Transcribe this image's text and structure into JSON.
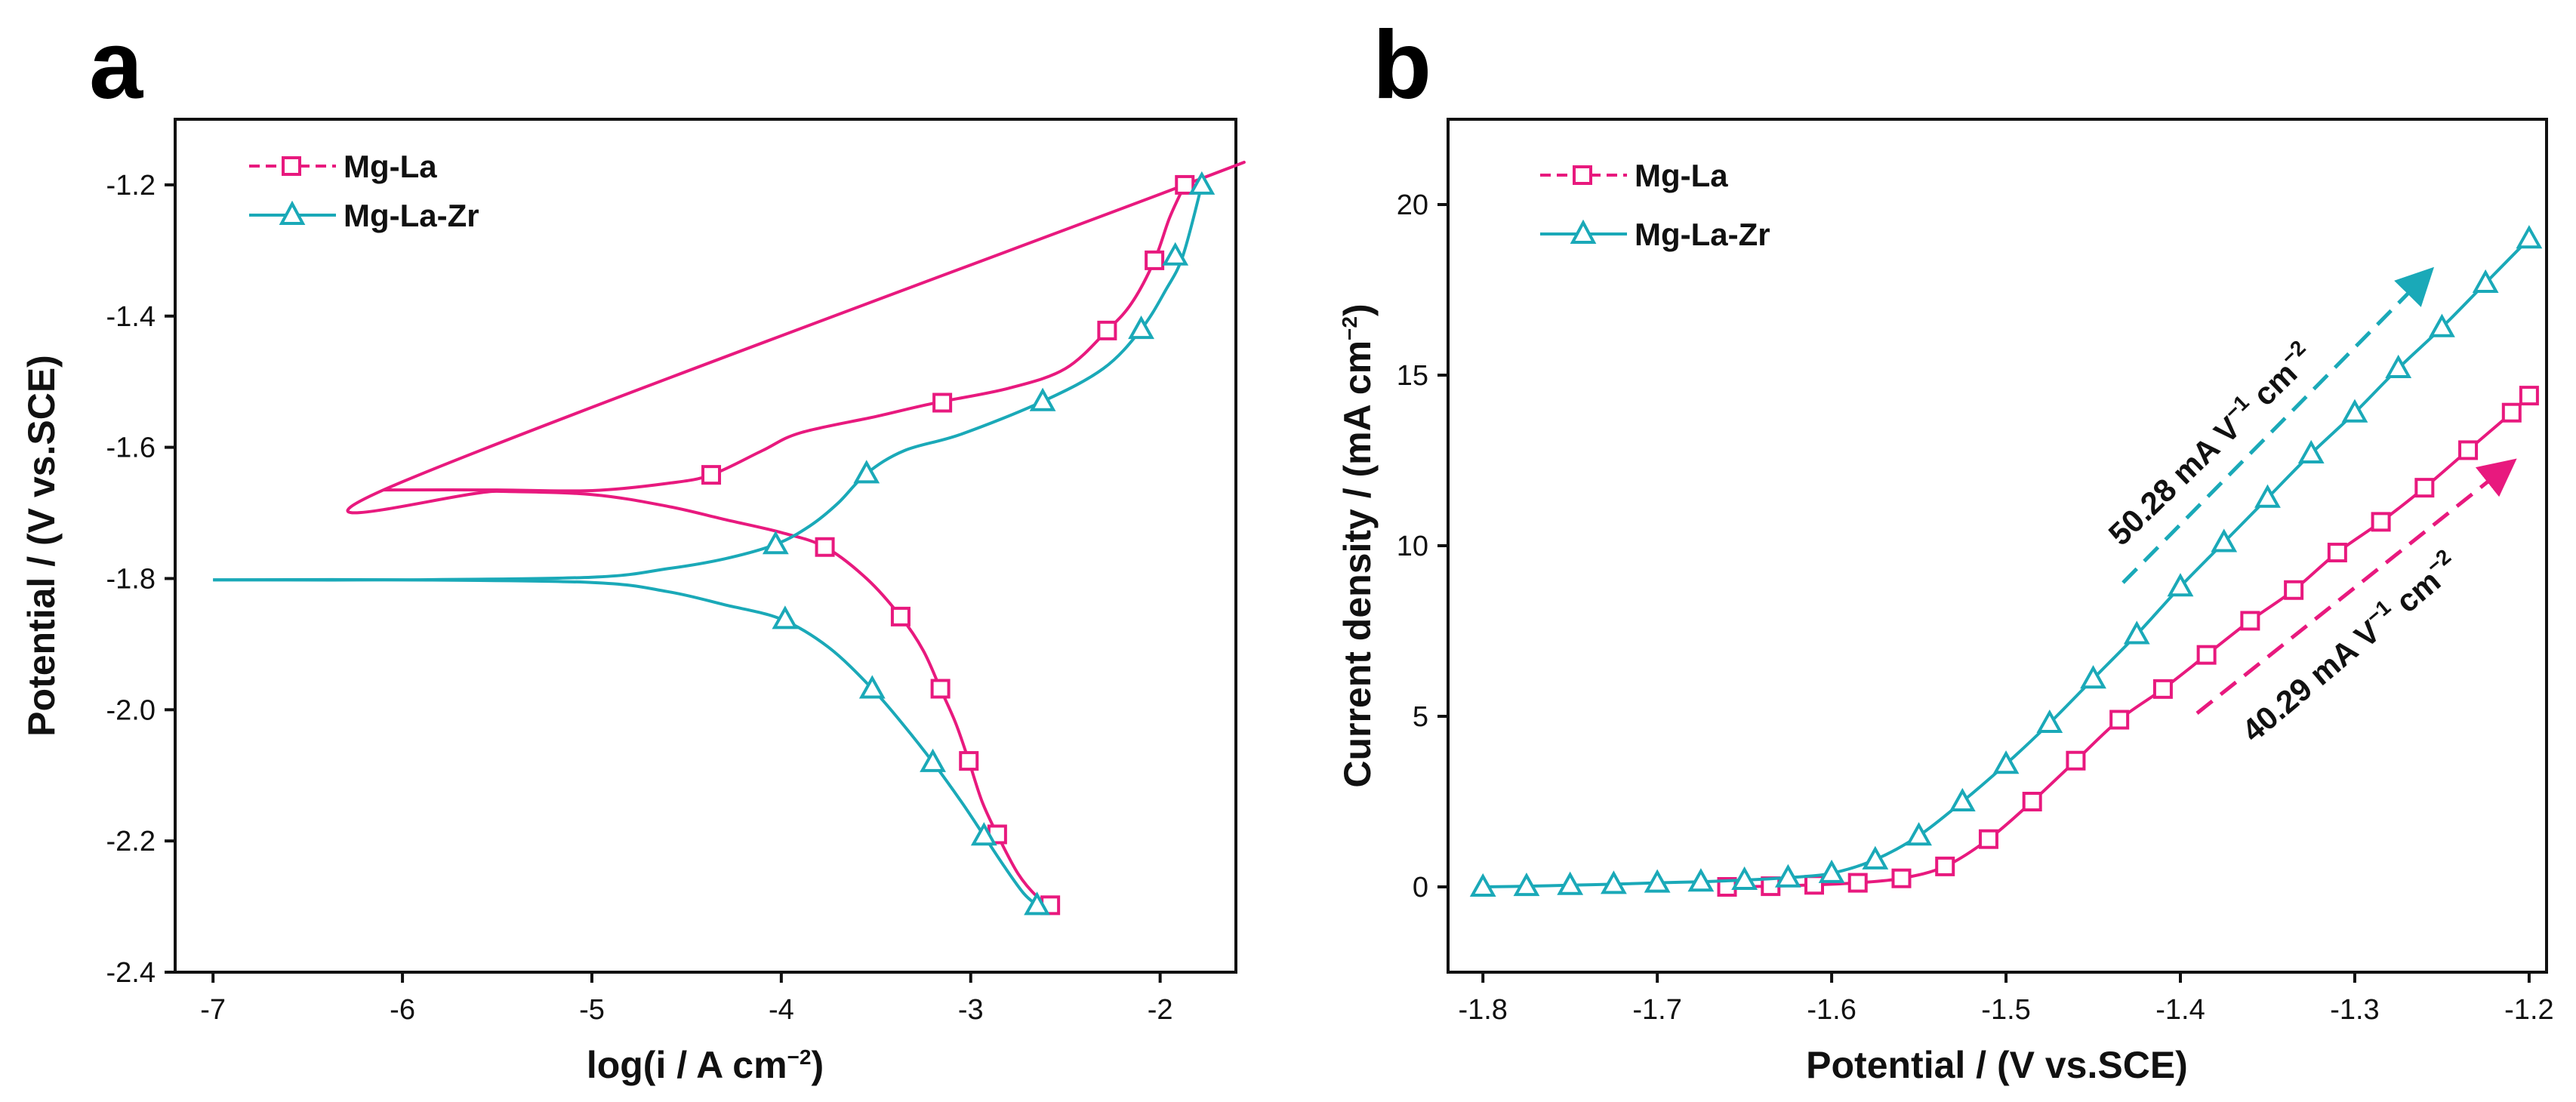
{
  "colors": {
    "mg_la": "#e8197e",
    "mg_la_zr": "#1aa9b8",
    "axis": "#111111"
  },
  "chart_data": [
    {
      "panel_label": "a",
      "type": "line",
      "title": "",
      "xlabel": "log(i / A cm",
      "xlabel_sup": "−2",
      "xlabel_end": ")",
      "ylabel": "Potential / (V vs.SCE)",
      "xlim": [
        -7.2,
        -1.6
      ],
      "ylim": [
        -2.4,
        -1.1
      ],
      "xticks": [
        -7,
        -6,
        -5,
        -4,
        -3,
        -2
      ],
      "xtick_labels": [
        "-7",
        "-6",
        "-5",
        "-4",
        "-3",
        "-2"
      ],
      "yticks": [
        -1.2,
        -1.4,
        -1.6,
        -1.8,
        -2.0,
        -2.2,
        -2.4
      ],
      "ytick_labels": [
        "-1.2",
        "-1.4",
        "-1.6",
        "-1.8",
        "-2.0",
        "-2.2",
        "-2.4"
      ],
      "legend": [
        "Mg-La",
        "Mg-La-Zr"
      ],
      "legend_position": "top-left",
      "series": [
        {
          "name": "Mg-La",
          "marker": "square",
          "curve": [
            [
              -6.1,
              -1.665
            ],
            [
              -5.5,
              -1.665
            ],
            [
              -5.0,
              -1.666
            ],
            [
              -4.6,
              -1.655
            ],
            [
              -4.37,
              -1.642
            ],
            [
              -4.1,
              -1.605
            ],
            [
              -3.9,
              -1.578
            ],
            [
              -3.5,
              -1.553
            ],
            [
              -3.2,
              -1.533
            ],
            [
              -2.8,
              -1.51
            ],
            [
              -2.5,
              -1.48
            ],
            [
              -2.28,
              -1.422
            ],
            [
              -2.15,
              -1.38
            ],
            [
              -2.03,
              -1.315
            ],
            [
              -1.95,
              -1.25
            ],
            [
              -1.87,
              -1.2
            ],
            [
              -1.87,
              -1.2
            ],
            [
              -1.87,
              -1.2
            ],
            [
              -6.1,
              -1.665
            ],
            [
              -5.5,
              -1.667
            ],
            [
              -5.0,
              -1.672
            ],
            [
              -4.6,
              -1.69
            ],
            [
              -4.3,
              -1.71
            ],
            [
              -4.0,
              -1.73
            ],
            [
              -3.77,
              -1.752
            ],
            [
              -3.55,
              -1.8
            ],
            [
              -3.37,
              -1.858
            ],
            [
              -3.25,
              -1.91
            ],
            [
              -3.16,
              -1.968
            ],
            [
              -3.08,
              -2.02
            ],
            [
              -3.01,
              -2.078
            ],
            [
              -2.94,
              -2.14
            ],
            [
              -2.86,
              -2.19
            ],
            [
              -2.75,
              -2.25
            ],
            [
              -2.65,
              -2.285
            ],
            [
              -2.58,
              -2.298
            ]
          ],
          "split_index": 16,
          "markers": [
            [
              -4.37,
              -1.642
            ],
            [
              -3.15,
              -1.532
            ],
            [
              -2.28,
              -1.422
            ],
            [
              -2.03,
              -1.315
            ],
            [
              -1.87,
              -1.2
            ],
            [
              -3.77,
              -1.752
            ],
            [
              -3.37,
              -1.858
            ],
            [
              -3.16,
              -1.968
            ],
            [
              -3.01,
              -2.078
            ],
            [
              -2.86,
              -2.19
            ],
            [
              -2.58,
              -2.298
            ]
          ]
        },
        {
          "name": "Mg-La-Zr",
          "marker": "triangle",
          "curve": [
            [
              -7.0,
              -1.802
            ],
            [
              -6.0,
              -1.802
            ],
            [
              -5.0,
              -1.798
            ],
            [
              -4.6,
              -1.785
            ],
            [
              -4.3,
              -1.77
            ],
            [
              -4.03,
              -1.748
            ],
            [
              -3.85,
              -1.72
            ],
            [
              -3.7,
              -1.685
            ],
            [
              -3.55,
              -1.64
            ],
            [
              -3.35,
              -1.605
            ],
            [
              -3.05,
              -1.58
            ],
            [
              -2.62,
              -1.53
            ],
            [
              -2.3,
              -1.48
            ],
            [
              -2.1,
              -1.42
            ],
            [
              -1.97,
              -1.36
            ],
            [
              -1.88,
              -1.308
            ],
            [
              -1.78,
              -1.2
            ],
            [
              -7.0,
              -1.802
            ],
            [
              -6.0,
              -1.802
            ],
            [
              -5.0,
              -1.806
            ],
            [
              -4.6,
              -1.82
            ],
            [
              -4.3,
              -1.84
            ],
            [
              -4.0,
              -1.862
            ],
            [
              -3.75,
              -1.905
            ],
            [
              -3.52,
              -1.968
            ],
            [
              -3.35,
              -2.025
            ],
            [
              -3.2,
              -2.08
            ],
            [
              -3.05,
              -2.14
            ],
            [
              -2.93,
              -2.192
            ],
            [
              -2.82,
              -2.24
            ],
            [
              -2.72,
              -2.28
            ],
            [
              -2.65,
              -2.298
            ]
          ],
          "split_index": 17,
          "markers": [
            [
              -4.03,
              -1.748
            ],
            [
              -3.55,
              -1.64
            ],
            [
              -2.62,
              -1.53
            ],
            [
              -2.1,
              -1.42
            ],
            [
              -1.92,
              -1.308
            ],
            [
              -1.78,
              -1.2
            ],
            [
              -3.98,
              -1.862
            ],
            [
              -3.52,
              -1.968
            ],
            [
              -3.2,
              -2.08
            ],
            [
              -2.93,
              -2.192
            ],
            [
              -2.65,
              -2.298
            ]
          ]
        }
      ]
    },
    {
      "panel_label": "b",
      "type": "line",
      "title": "",
      "xlabel": "Potential / (V vs.SCE)",
      "ylabel": "Current density / (mA cm",
      "ylabel_sup": "−2",
      "ylabel_end": ")",
      "xlim": [
        -1.82,
        -1.19
      ],
      "ylim": [
        -2.5,
        22.5
      ],
      "xticks": [
        -1.8,
        -1.7,
        -1.6,
        -1.5,
        -1.4,
        -1.3,
        -1.2
      ],
      "xtick_labels": [
        "-1.8",
        "-1.7",
        "-1.6",
        "-1.5",
        "-1.4",
        "-1.3",
        "-1.2"
      ],
      "yticks": [
        0,
        5,
        10,
        15,
        20
      ],
      "ytick_labels": [
        "0",
        "5",
        "10",
        "15",
        "20"
      ],
      "legend": [
        "Mg-La",
        "Mg-La-Zr"
      ],
      "legend_position": "top-left",
      "series": [
        {
          "name": "Mg-La",
          "marker": "square",
          "x": [
            -1.66,
            -1.635,
            -1.61,
            -1.585,
            -1.56,
            -1.535,
            -1.51,
            -1.485,
            -1.46,
            -1.435,
            -1.41,
            -1.385,
            -1.36,
            -1.335,
            -1.31,
            -1.285,
            -1.26,
            -1.235,
            -1.21,
            -1.2
          ],
          "y": [
            0.0,
            0.02,
            0.06,
            0.12,
            0.25,
            0.6,
            1.4,
            2.5,
            3.7,
            4.9,
            5.8,
            6.8,
            7.8,
            8.7,
            9.8,
            10.7,
            11.7,
            12.8,
            13.9,
            14.4
          ]
        },
        {
          "name": "Mg-La-Zr",
          "marker": "triangle",
          "x": [
            -1.8,
            -1.775,
            -1.75,
            -1.725,
            -1.7,
            -1.675,
            -1.65,
            -1.625,
            -1.6,
            -1.575,
            -1.55,
            -1.525,
            -1.5,
            -1.475,
            -1.45,
            -1.425,
            -1.4,
            -1.375,
            -1.35,
            -1.325,
            -1.3,
            -1.275,
            -1.25,
            -1.225,
            -1.2
          ],
          "y": [
            0.0,
            0.02,
            0.05,
            0.08,
            0.12,
            0.15,
            0.2,
            0.27,
            0.4,
            0.8,
            1.5,
            2.5,
            3.6,
            4.8,
            6.1,
            7.4,
            8.8,
            10.1,
            11.4,
            12.7,
            13.9,
            15.2,
            16.4,
            17.7,
            19.0
          ]
        }
      ],
      "annotations": [
        {
          "prefix": "50.28 mA V",
          "sup1": "−1",
          "mid": " cm",
          "sup2": "−2",
          "series": "Mg-La-Zr"
        },
        {
          "prefix": "40.29 mA V",
          "sup1": "−1",
          "mid": " cm",
          "sup2": "−2",
          "series": "Mg-La"
        }
      ]
    }
  ]
}
